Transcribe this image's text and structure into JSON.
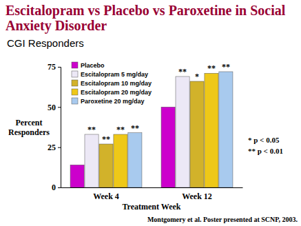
{
  "chart_data": {
    "type": "bar",
    "title": "Escitalopram vs Placebo vs Paroxetine in Social Anxiety Disorder",
    "subtitle": "CGI Responders",
    "x_label": "Treatment Week",
    "y_label": "Percent Responders",
    "categories": [
      "Week 4",
      "Week 12"
    ],
    "series": [
      {
        "name": "Placebo",
        "color": "#cc00cc",
        "values": [
          14,
          50
        ],
        "significance": [
          null,
          null
        ]
      },
      {
        "name": "Escitalopram 5 mg/day",
        "color": "#ece8f6",
        "values": [
          33,
          69
        ],
        "significance": [
          "**",
          "**"
        ]
      },
      {
        "name": "Escitalopram 10 mg/day",
        "color": "#d2b22a",
        "values": [
          27,
          66
        ],
        "significance": [
          "**",
          "*"
        ]
      },
      {
        "name": "Escitalopram 20 mg/day",
        "color": "#eec818",
        "values": [
          33,
          71
        ],
        "significance": [
          "**",
          "**"
        ]
      },
      {
        "name": "Paroxetine 20 mg/day",
        "color": "#a8caee",
        "values": [
          34,
          72
        ],
        "significance": [
          "**",
          "**"
        ]
      }
    ],
    "ylim": [
      0,
      75
    ],
    "yticks": [
      0,
      25,
      50,
      75
    ],
    "grid": false,
    "legend": "upper left",
    "footnotes": [
      "* p < 0.05",
      "** p < 0.01"
    ],
    "source": "Montgomery et al. Poster presented at SCNP, 2003."
  }
}
